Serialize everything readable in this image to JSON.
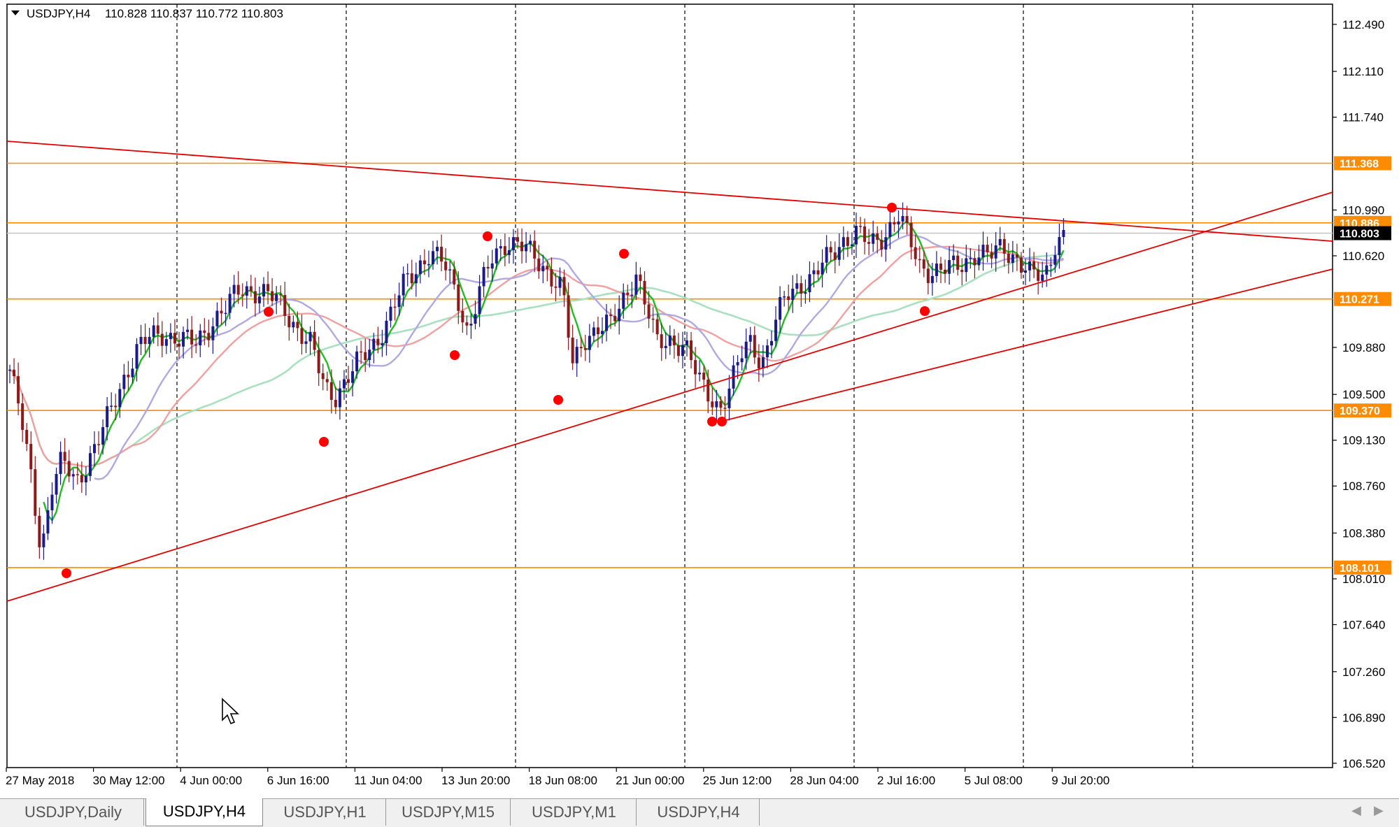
{
  "window": {
    "symbol_title": "USDJPY,H4",
    "ohlc": "110.828 110.837 110.772 110.803"
  },
  "price_axis": {
    "ticks": [
      "112.490",
      "112.110",
      "111.740",
      "110.990",
      "110.620",
      "109.880",
      "109.500",
      "109.130",
      "108.760",
      "108.380",
      "108.010",
      "107.640",
      "107.260",
      "106.890",
      "106.520"
    ],
    "badges": [
      {
        "label": "111.368",
        "color": "#ff8c00"
      },
      {
        "label": "110.886",
        "color": "#ff8c00"
      },
      {
        "label": "110.803",
        "color": "#000000"
      },
      {
        "label": "110.271",
        "color": "#ff8c00"
      },
      {
        "label": "109.370",
        "color": "#ff8c00"
      },
      {
        "label": "108.101",
        "color": "#ff8c00"
      }
    ]
  },
  "time_axis": {
    "ticks": [
      "27 May 2018",
      "30 May 12:00",
      "4 Jun 00:00",
      "6 Jun 16:00",
      "11 Jun 04:00",
      "13 Jun 20:00",
      "18 Jun 08:00",
      "21 Jun 00:00",
      "25 Jun 12:00",
      "28 Jun 04:00",
      "2 Jul 16:00",
      "5 Jul 08:00",
      "9 Jul 20:00"
    ]
  },
  "tabs": [
    {
      "label": "USDJPY,Daily",
      "active": false
    },
    {
      "label": "USDJPY,H4",
      "active": true
    },
    {
      "label": "USDJPY,H1",
      "active": false
    },
    {
      "label": "USDJPY,M15",
      "active": false
    },
    {
      "label": "USDJPY,M1",
      "active": false
    },
    {
      "label": "USDJPY,H4",
      "active": false
    }
  ],
  "colors": {
    "bull_candle": "#1a1a8c",
    "bear_candle": "#8b1a1a",
    "horizontal_level": "#ff8c00",
    "trendline": "#e00000",
    "swing_dot": "#ff0000",
    "ma_fast": "#22bb22",
    "ma_mid": "#b0a8e0",
    "ma_slow": "#a8e0c0",
    "ma_red": "#f0a0a0"
  },
  "icons": {
    "menu": "triangle-down-icon",
    "cursor": "mouse-pointer-icon",
    "scroll_left": "chevron-left-icon",
    "scroll_right": "chevron-right-icon"
  }
}
